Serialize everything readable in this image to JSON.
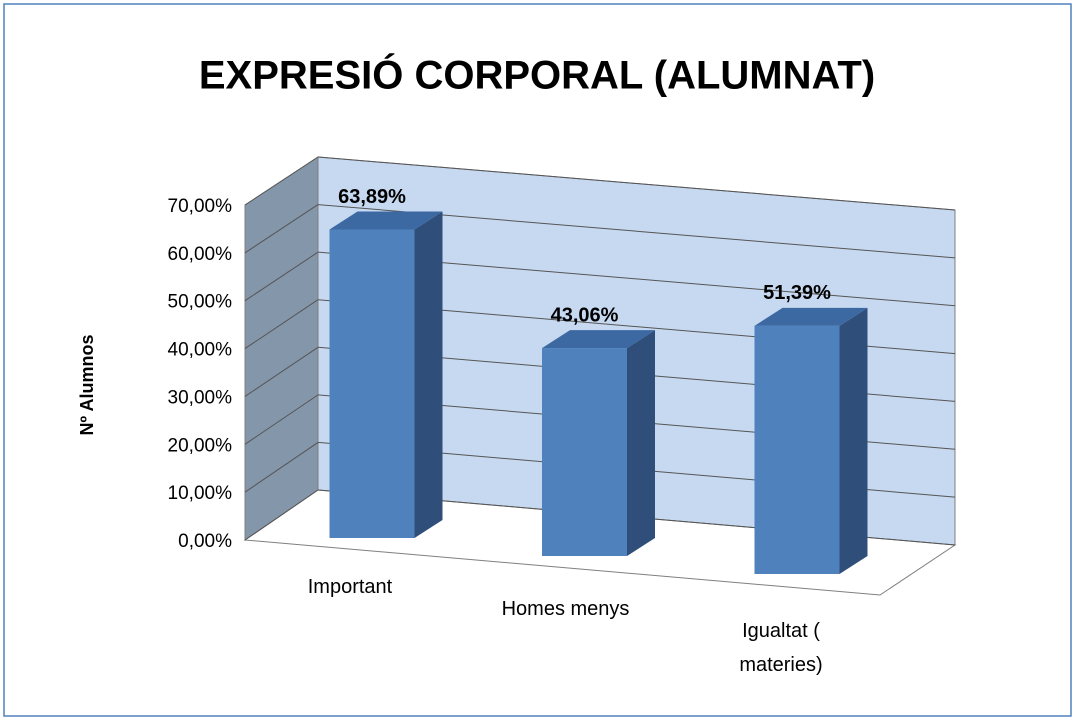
{
  "chart_data": {
    "type": "bar",
    "title": "EXPRESIÓ CORPORAL (ALUMNAT)",
    "y_label": "Nº Alumnos",
    "categories": [
      "Important",
      "Homes menys",
      "Igualtat  (\nmateries)"
    ],
    "values": [
      63.89,
      43.06,
      51.39
    ],
    "value_labels": [
      "63,89%",
      "43,06%",
      "51,39%"
    ],
    "color": "#4f81bd",
    "ylim": [
      0,
      70
    ],
    "yticks": [
      {
        "value": 0,
        "label": "0,00%"
      },
      {
        "value": 10,
        "label": "10,00%"
      },
      {
        "value": 20,
        "label": "20,00%"
      },
      {
        "value": 30,
        "label": "30,00%"
      },
      {
        "value": 40,
        "label": "40,00%"
      },
      {
        "value": 50,
        "label": "50,00%"
      },
      {
        "value": 60,
        "label": "60,00%"
      },
      {
        "value": 70,
        "label": "70,00%"
      }
    ],
    "grid": true
  }
}
